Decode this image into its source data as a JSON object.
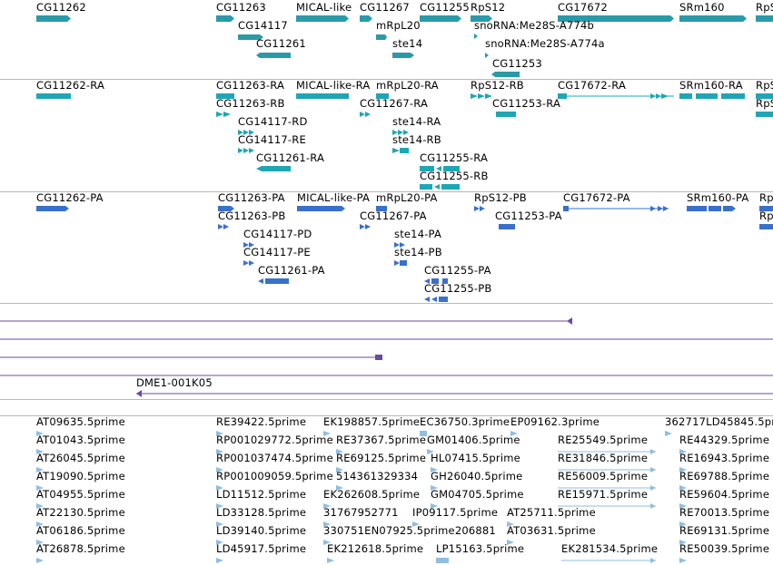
{
  "colors": {
    "gene": "#2a9aa8",
    "transcript": "#1ea6b4",
    "protein": "#3a6fcc",
    "contig": "#6c4aa0",
    "est": "#8fbee0"
  },
  "tracks": {
    "genes": {
      "labels": [
        [
          "CG11262",
          40,
          14
        ],
        [
          "CG11263",
          238,
          14
        ],
        [
          "MICAL-like",
          326,
          14
        ],
        [
          "CG11267",
          396,
          14
        ],
        [
          "CG11255",
          462,
          14
        ],
        [
          "RpS12",
          518,
          14
        ],
        [
          "CG17672",
          614,
          14
        ],
        [
          "SRm160",
          748,
          14
        ],
        [
          "RpS",
          832,
          14
        ],
        [
          "CG14117",
          262,
          34
        ],
        [
          "mRpL20",
          414,
          34
        ],
        [
          "snoRNA:Me28S-A774b",
          522,
          34
        ],
        [
          "CG11261",
          282,
          54
        ],
        [
          "ste14",
          432,
          54
        ],
        [
          "snoRNA:Me28S-A774a",
          534,
          54
        ],
        [
          "CG11253",
          542,
          76
        ]
      ]
    },
    "transcripts": {
      "labels": [
        [
          "CG11262-RA",
          40,
          100
        ],
        [
          "CG11263-RA",
          238,
          100
        ],
        [
          "MICAL-like-RA",
          326,
          100
        ],
        [
          "mRpL20-RA",
          414,
          100
        ],
        [
          "RpS12-RB",
          518,
          100
        ],
        [
          "CG17672-RA",
          614,
          100
        ],
        [
          "SRm160-RA",
          748,
          100
        ],
        [
          "RpS",
          832,
          100
        ],
        [
          "CG11263-RB",
          238,
          120
        ],
        [
          "CG11267-RA",
          396,
          120
        ],
        [
          "CG11253-RA",
          542,
          120
        ],
        [
          "RpS",
          832,
          120
        ],
        [
          "CG14117-RD",
          262,
          140
        ],
        [
          "ste14-RA",
          432,
          140
        ],
        [
          "CG14117-RE",
          262,
          160
        ],
        [
          "ste14-RB",
          432,
          160
        ],
        [
          "CG11261-RA",
          282,
          180
        ],
        [
          "CG11255-RA",
          462,
          180
        ],
        [
          "CG11255-RB",
          462,
          200
        ]
      ]
    },
    "proteins": {
      "labels": [
        [
          "CG11262-PA",
          40,
          224
        ],
        [
          "CG11263-PA",
          240,
          224
        ],
        [
          "MICAL-like-PA",
          327,
          224
        ],
        [
          "mRpL20-PA",
          414,
          224
        ],
        [
          "RpS12-PB",
          522,
          224
        ],
        [
          "CG17672-PA",
          620,
          224
        ],
        [
          "SRm160-PA",
          756,
          224
        ],
        [
          "Rp",
          836,
          224
        ],
        [
          "CG11263-PB",
          240,
          244
        ],
        [
          "CG11267-PA",
          396,
          244
        ],
        [
          "CG11253-PA",
          545,
          244
        ],
        [
          "Rp",
          836,
          244
        ],
        [
          "CG14117-PD",
          268,
          264
        ],
        [
          "ste14-PA",
          434,
          264
        ],
        [
          "CG14117-PE",
          268,
          284
        ],
        [
          "ste14-PB",
          434,
          284
        ],
        [
          "CG11261-PA",
          284,
          304
        ],
        [
          "CG11255-PA",
          467,
          304
        ],
        [
          "CG11255-PB",
          467,
          324
        ]
      ]
    },
    "contigs": {
      "labels": [
        [
          "DME1-001K05",
          150,
          428
        ]
      ]
    },
    "ests": {
      "labels": [
        [
          "AT09635.5prime",
          40,
          471
        ],
        [
          "RE39422.5prime",
          238,
          471
        ],
        [
          "EK198857.5prime",
          356,
          471
        ],
        [
          "EC36750.3prime",
          462,
          471
        ],
        [
          "EP09162.3prime",
          562,
          471
        ],
        [
          "362717LD45845.5prim",
          732,
          471
        ],
        [
          "AT01043.5prime",
          40,
          491
        ],
        [
          "RP001029772.5prime",
          238,
          491
        ],
        [
          "RE37367.5prime",
          370,
          491
        ],
        [
          "GM01406.5prime",
          470,
          491
        ],
        [
          "RE25549.5prime",
          614,
          491
        ],
        [
          "RE44329.5prime",
          748,
          491
        ],
        [
          "AT26045.5prime",
          40,
          511
        ],
        [
          "RP001037474.5prime",
          238,
          511
        ],
        [
          "RE69125.5prime",
          370,
          511
        ],
        [
          "HL07415.5prime",
          474,
          511
        ],
        [
          "RE31846.5prime",
          614,
          511
        ],
        [
          "RE16943.5prime",
          748,
          511
        ],
        [
          "AT19090.5prime",
          40,
          531
        ],
        [
          "RP001009059.5prime",
          238,
          531
        ],
        [
          "514361329334",
          370,
          531
        ],
        [
          "GH26040.5prime",
          474,
          531
        ],
        [
          "RE56009.5prime",
          614,
          531
        ],
        [
          "RE69788.5prime",
          748,
          531
        ],
        [
          "AT04955.5prime",
          40,
          551
        ],
        [
          "LD11512.5prime",
          238,
          551
        ],
        [
          "EK262608.5prime",
          356,
          551
        ],
        [
          "GM04705.5prime",
          474,
          551
        ],
        [
          "RE15971.5prime",
          614,
          551
        ],
        [
          "RE59604.5prime",
          748,
          551
        ],
        [
          "AT22130.5prime",
          40,
          571
        ],
        [
          "LD33128.5prime",
          238,
          571
        ],
        [
          "31767952771",
          356,
          571
        ],
        [
          "IP09117.5prime",
          454,
          571
        ],
        [
          "AT25711.5prime",
          558,
          571
        ],
        [
          "RE70013.5prime",
          748,
          571
        ],
        [
          "AT06186.5prime",
          40,
          591
        ],
        [
          "LD39140.5prime",
          238,
          591
        ],
        [
          "330751EN07925.5prime206881",
          356,
          591
        ],
        [
          "AT03631.5prime",
          558,
          591
        ],
        [
          "RE69131.5prime",
          748,
          591
        ],
        [
          "AT26878.5prime",
          40,
          611
        ],
        [
          "LD45917.5prime",
          238,
          611
        ],
        [
          "EK212618.5prime",
          360,
          611
        ],
        [
          "LP15163.5prime",
          480,
          611
        ],
        [
          "EK281534.5prime",
          618,
          611
        ],
        [
          "RE50039.5prime",
          748,
          611
        ]
      ]
    }
  }
}
